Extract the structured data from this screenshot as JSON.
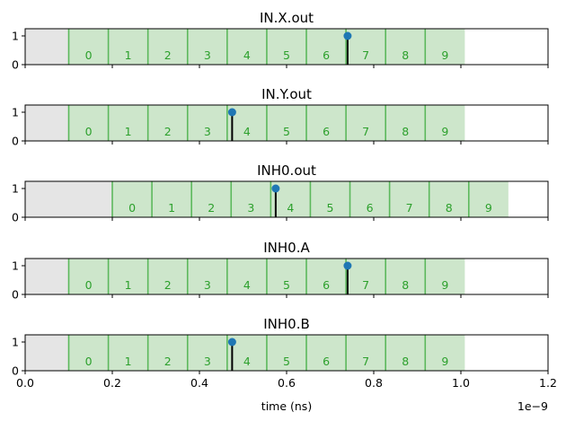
{
  "chart_data": {
    "type": "timing",
    "xlabel": "time (ns)",
    "xlim": [
      0,
      1.2e-09
    ],
    "x_multiplier_label": "1e−9",
    "x_ticks": [
      0,
      2e-10,
      4e-10,
      6e-10,
      8e-10,
      1e-09,
      1.2e-09
    ],
    "x_tick_labels": [
      "0.0",
      "0.2",
      "0.4",
      "0.6",
      "0.8",
      "1.0",
      "1.2"
    ],
    "ylim": [
      0,
      1.25
    ],
    "y_ticks": [
      0,
      1
    ],
    "y_tick_labels": [
      "0",
      "1"
    ],
    "colors": {
      "slot_fill": "#cde6cb",
      "slot_line": "#5cb85c",
      "pre_fill": "#e5e5e5",
      "marker": "#1f77b4",
      "stem": "#000000",
      "slot_text": "#2ca02c"
    },
    "panels": [
      {
        "title": "IN.X.out",
        "start": 1e-10,
        "slot": 9.09e-11,
        "labels": [
          "0",
          "1",
          "2",
          "3",
          "4",
          "5",
          "6",
          "7",
          "8",
          "9"
        ],
        "event_x": 7.4e-10,
        "event_y": 1
      },
      {
        "title": "IN.Y.out",
        "start": 1e-10,
        "slot": 9.09e-11,
        "labels": [
          "0",
          "1",
          "2",
          "3",
          "4",
          "5",
          "6",
          "7",
          "8",
          "9"
        ],
        "event_x": 4.75e-10,
        "event_y": 1
      },
      {
        "title": "INH0.out",
        "start": 2e-10,
        "slot": 9.09e-11,
        "labels": [
          "0",
          "1",
          "2",
          "3",
          "4",
          "5",
          "6",
          "7",
          "8",
          "9"
        ],
        "event_x": 5.75e-10,
        "event_y": 1
      },
      {
        "title": "INH0.A",
        "start": 1e-10,
        "slot": 9.09e-11,
        "labels": [
          "0",
          "1",
          "2",
          "3",
          "4",
          "5",
          "6",
          "7",
          "8",
          "9"
        ],
        "event_x": 7.4e-10,
        "event_y": 1
      },
      {
        "title": "INH0.B",
        "start": 1e-10,
        "slot": 9.09e-11,
        "labels": [
          "0",
          "1",
          "2",
          "3",
          "4",
          "5",
          "6",
          "7",
          "8",
          "9"
        ],
        "event_x": 4.75e-10,
        "event_y": 1
      }
    ]
  }
}
